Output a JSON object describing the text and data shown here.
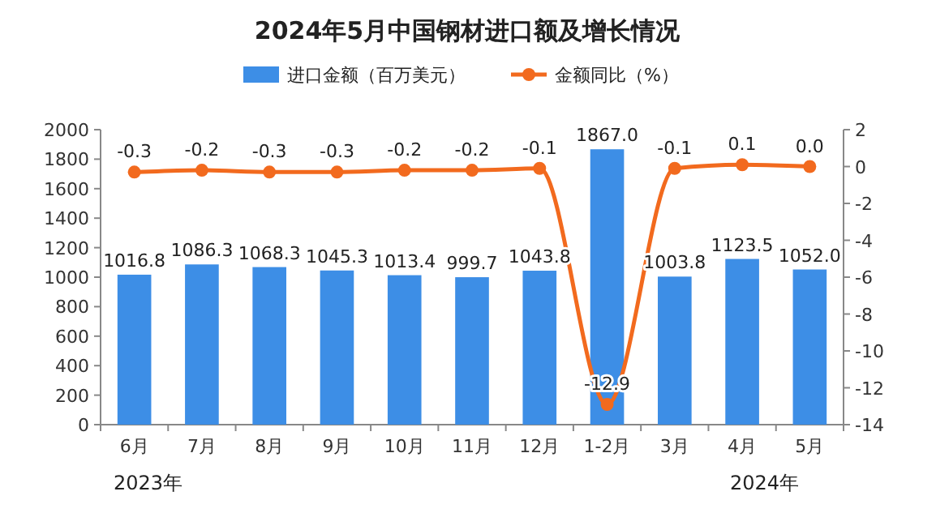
{
  "chart_data": {
    "type": "bar",
    "title": "2024年5月中国钢材进口额及增长情况",
    "categories": [
      "6月",
      "7月",
      "8月",
      "9月",
      "10月",
      "11月",
      "12月",
      "1-2月",
      "3月",
      "4月",
      "5月"
    ],
    "series": [
      {
        "name": "进口金额（百万美元）",
        "color": "#3d8ee6",
        "values": [
          1016.8,
          1086.3,
          1068.3,
          1045.3,
          1013.4,
          999.7,
          1043.8,
          1867.0,
          1003.8,
          1123.5,
          1052.0
        ],
        "value_labels": [
          "1016.8",
          "1086.3",
          "1068.3",
          "1045.3",
          "1013.4",
          "999.7",
          "1043.8",
          "1867.0",
          "1003.8",
          "1123.5",
          "1052.0"
        ]
      },
      {
        "name": "金额同比（%）",
        "type": "line",
        "axis": "y2",
        "color": "#f26a1e",
        "marker": "circle",
        "values": [
          -0.3,
          -0.2,
          -0.3,
          -0.3,
          -0.2,
          -0.2,
          -0.1,
          -12.9,
          -0.1,
          0.1,
          0.0
        ],
        "value_labels": [
          "-0.3",
          "-0.2",
          "-0.3",
          "-0.3",
          "-0.2",
          "-0.2",
          "-0.1",
          "-12.9",
          "-0.1",
          "0.1",
          "0.0"
        ]
      }
    ],
    "ylim": [
      0,
      2000
    ],
    "yticks": [
      0,
      200,
      400,
      600,
      800,
      1000,
      1200,
      1400,
      1600,
      1800,
      2000
    ],
    "y2lim": [
      -14,
      2
    ],
    "y2ticks": [
      -14,
      -12,
      -10,
      -8,
      -6,
      -4,
      -2,
      0,
      2
    ],
    "legend": "top",
    "annotations": [
      "2023年",
      "2024年"
    ]
  }
}
